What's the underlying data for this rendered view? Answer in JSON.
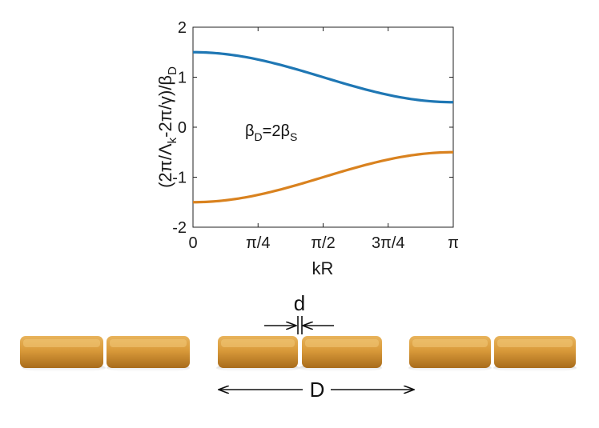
{
  "chart_data": {
    "type": "line",
    "ylabel": "(2π/Λ_k-2π/γ)/β_D",
    "xlabel": "kR",
    "xlim": [
      0,
      3.14159
    ],
    "ylim": [
      -2,
      2
    ],
    "xticks": [
      {
        "value": 0,
        "label": "0"
      },
      {
        "value": 0.7854,
        "label": "π/4"
      },
      {
        "value": 1.5708,
        "label": "π/2"
      },
      {
        "value": 2.3562,
        "label": "3π/4"
      },
      {
        "value": 3.14159,
        "label": "π"
      }
    ],
    "yticks": [
      {
        "value": -2,
        "label": "-2"
      },
      {
        "value": -1,
        "label": "-1"
      },
      {
        "value": 0,
        "label": "0"
      },
      {
        "value": 1,
        "label": "1"
      },
      {
        "value": 2,
        "label": "2"
      }
    ],
    "grid": false,
    "annotation": {
      "text": "β_D=2β_S",
      "x": 1.0,
      "y": 0
    },
    "series": [
      {
        "color": "#1f77b4",
        "formula": "1.0 + 0.5*cos(x)",
        "x": [
          0,
          0.3927,
          0.7854,
          1.1781,
          1.5708,
          1.9635,
          2.3562,
          2.7489,
          3.14159
        ],
        "values": [
          1.5,
          1.46,
          1.35,
          1.19,
          1.0,
          0.81,
          0.65,
          0.54,
          0.5
        ]
      },
      {
        "color": "#d9821f",
        "formula": "-1.0 - 0.5*cos(x)",
        "x": [
          0,
          0.3927,
          0.7854,
          1.1781,
          1.5708,
          1.9635,
          2.3562,
          2.7489,
          3.14159
        ],
        "values": [
          -1.5,
          -1.46,
          -1.35,
          -1.19,
          -1.0,
          -0.81,
          -0.65,
          -0.54,
          -0.5
        ]
      }
    ]
  },
  "diagram": {
    "d_label": "d",
    "D_label": "D",
    "particle_color": "#d99a3a"
  }
}
